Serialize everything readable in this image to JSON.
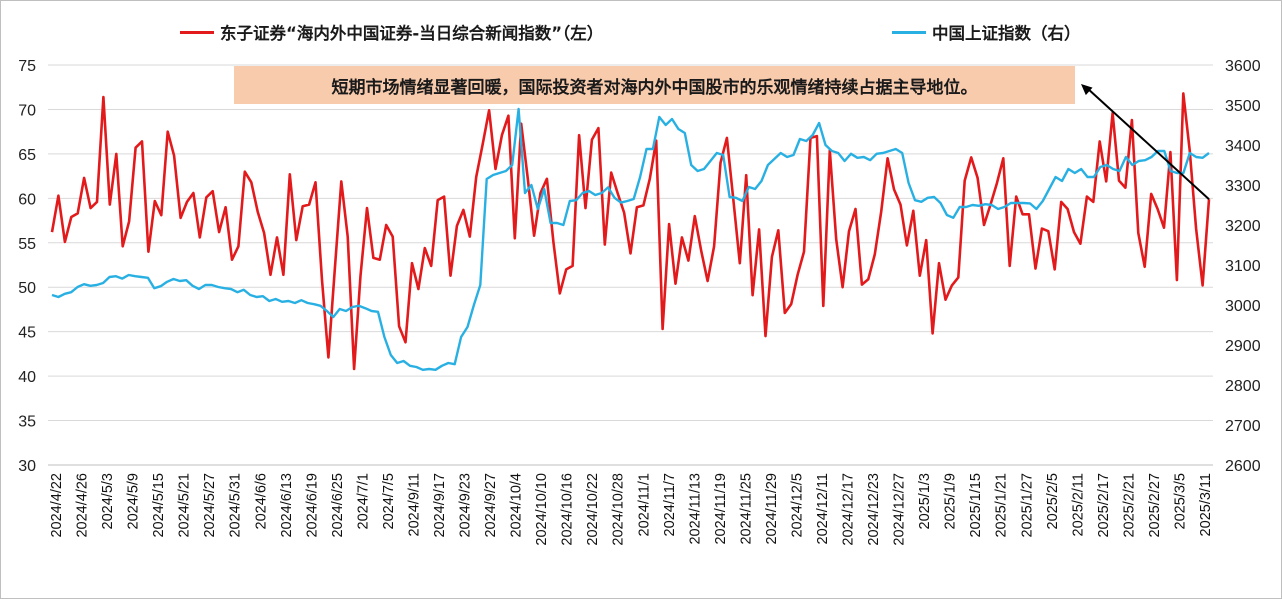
{
  "legend": {
    "left": "东子证券“海内外中国证券-当日综合新闻指数”（左）",
    "right": "中国上证指数（右）"
  },
  "annotation": "短期市场情绪显著回暖，国际投资者对海内外中国股市的乐观情绪持续占据主导地位。",
  "chart_data": {
    "type": "line",
    "x_tick_labels": [
      "2024/4/22",
      "2024/4/26",
      "2024/5/3",
      "2024/5/9",
      "2024/5/15",
      "2024/5/21",
      "2024/5/27",
      "2024/5/31",
      "2024/6/6",
      "2024/6/13",
      "2024/6/19",
      "2024/6/25",
      "2024/7/1",
      "2024/7/5",
      "2024/9/11",
      "2024/9/17",
      "2024/9/23",
      "2024/9/27",
      "2024/10/4",
      "2024/10/10",
      "2024/10/16",
      "2024/10/22",
      "2024/10/28",
      "2024/11/1",
      "2024/11/7",
      "2024/11/13",
      "2024/11/19",
      "2024/11/25",
      "2024/11/29",
      "2024/12/5",
      "2024/12/11",
      "2024/12/17",
      "2024/12/23",
      "2024/12/27",
      "2025/1/3",
      "2025/1/9",
      "2025/1/15",
      "2025/1/21",
      "2025/1/27",
      "2025/2/5",
      "2025/2/11",
      "2025/2/17",
      "2025/2/21",
      "2025/2/27",
      "2025/3/5",
      "2025/3/11"
    ],
    "y_left": {
      "ylim": [
        30,
        75
      ],
      "ticks": [
        30,
        35,
        40,
        45,
        50,
        55,
        60,
        65,
        70,
        75
      ]
    },
    "y_right": {
      "ylim": [
        2600,
        3600
      ],
      "ticks": [
        2600,
        2700,
        2800,
        2900,
        3000,
        3100,
        3200,
        3300,
        3400,
        3500,
        3600
      ]
    },
    "grid": true,
    "series": [
      {
        "name": "东子证券“海内外中国证券-当日综合新闻指数”（左）",
        "axis": "left",
        "color": "#e31a1c",
        "values": [
          56.2,
          60.3,
          55.1,
          57.9,
          58.3,
          62.3,
          58.9,
          59.6,
          71.4,
          59.3,
          65.0,
          54.6,
          57.4,
          65.7,
          66.4,
          54.0,
          59.7,
          58.1,
          67.5,
          64.8,
          57.8,
          59.6,
          60.6,
          55.6,
          60.1,
          60.8,
          56.2,
          59.0,
          53.1,
          54.6,
          63.0,
          61.8,
          58.5,
          56.1,
          51.4,
          55.6,
          51.4,
          62.7,
          55.3,
          59.1,
          59.3,
          61.8,
          50.8,
          42.1,
          52.0,
          61.9,
          55.7,
          40.8,
          51.3,
          58.9,
          53.3,
          53.1,
          57.0,
          55.7,
          45.6,
          43.8,
          52.7,
          49.8,
          54.4,
          52.4,
          59.8,
          60.2,
          51.3,
          56.9,
          58.7,
          55.7,
          62.4,
          66.1,
          69.9,
          63.3,
          67.1,
          69.3,
          55.5,
          68.4,
          62.3,
          55.8,
          60.6,
          62.2,
          55.1,
          49.3,
          52.0,
          52.4,
          67.1,
          58.9,
          66.6,
          67.9,
          54.8,
          62.9,
          60.6,
          58.4,
          53.8,
          59.0,
          59.2,
          62.2,
          66.5,
          45.3,
          57.1,
          50.4,
          55.6,
          53.0,
          58.0,
          54.1,
          50.7,
          54.6,
          64.0,
          66.8,
          59.9,
          52.7,
          62.6,
          49.1,
          56.5,
          44.5,
          53.4,
          56.4,
          47.1,
          48.1,
          51.4,
          54.0,
          66.8,
          67.0,
          47.9,
          65.4,
          55.4,
          50.0,
          56.3,
          58.8,
          50.3,
          50.9,
          53.7,
          58.5,
          64.5,
          61.0,
          59.3,
          54.7,
          58.6,
          51.3,
          55.3,
          44.8,
          52.7,
          48.6,
          50.2,
          51.1,
          62.0,
          64.6,
          62.3,
          57.0,
          59.3,
          61.7,
          64.5,
          52.4,
          60.2,
          58.2,
          58.2,
          52.1,
          56.6,
          56.3,
          52.0,
          59.6,
          58.8,
          56.2,
          54.9,
          60.2,
          59.6,
          66.4,
          61.9,
          69.6,
          62.0,
          61.2,
          68.8,
          56.1,
          52.3,
          60.5,
          58.8,
          56.7,
          65.2,
          50.8,
          71.8,
          65.4,
          56.6,
          50.2,
          59.9
        ]
      },
      {
        "name": "中国上证指数（右）",
        "axis": "right",
        "color": "#29b0e3",
        "values": [
          3025,
          3020,
          3028,
          3032,
          3045,
          3052,
          3048,
          3050,
          3055,
          3070,
          3072,
          3066,
          3075,
          3072,
          3070,
          3068,
          3042,
          3047,
          3058,
          3065,
          3060,
          3062,
          3048,
          3040,
          3050,
          3050,
          3045,
          3042,
          3040,
          3032,
          3038,
          3025,
          3020,
          3022,
          3010,
          3015,
          3008,
          3010,
          3005,
          3012,
          3005,
          3002,
          2998,
          2985,
          2970,
          2990,
          2985,
          2995,
          2998,
          2992,
          2985,
          2983,
          2920,
          2875,
          2855,
          2860,
          2848,
          2845,
          2838,
          2840,
          2838,
          2848,
          2855,
          2852,
          2920,
          2945,
          3000,
          3050,
          3315,
          3325,
          3330,
          3335,
          3350,
          3490,
          3280,
          3300,
          3240,
          3290,
          3205,
          3205,
          3200,
          3260,
          3262,
          3280,
          3285,
          3275,
          3280,
          3294,
          3268,
          3256,
          3260,
          3265,
          3320,
          3390,
          3390,
          3470,
          3450,
          3465,
          3440,
          3430,
          3350,
          3335,
          3340,
          3360,
          3380,
          3375,
          3270,
          3268,
          3260,
          3295,
          3290,
          3310,
          3350,
          3365,
          3380,
          3370,
          3375,
          3415,
          3410,
          3425,
          3455,
          3400,
          3385,
          3380,
          3360,
          3378,
          3368,
          3370,
          3362,
          3378,
          3380,
          3385,
          3390,
          3380,
          3305,
          3262,
          3258,
          3268,
          3270,
          3255,
          3225,
          3218,
          3245,
          3245,
          3250,
          3248,
          3252,
          3250,
          3240,
          3245,
          3255,
          3255,
          3255,
          3254,
          3240,
          3260,
          3290,
          3320,
          3310,
          3340,
          3330,
          3340,
          3320,
          3320,
          3345,
          3350,
          3340,
          3335,
          3370,
          3350,
          3360,
          3362,
          3370,
          3385,
          3385,
          3335,
          3330,
          3330,
          3380,
          3370,
          3368,
          3380
        ]
      }
    ]
  }
}
